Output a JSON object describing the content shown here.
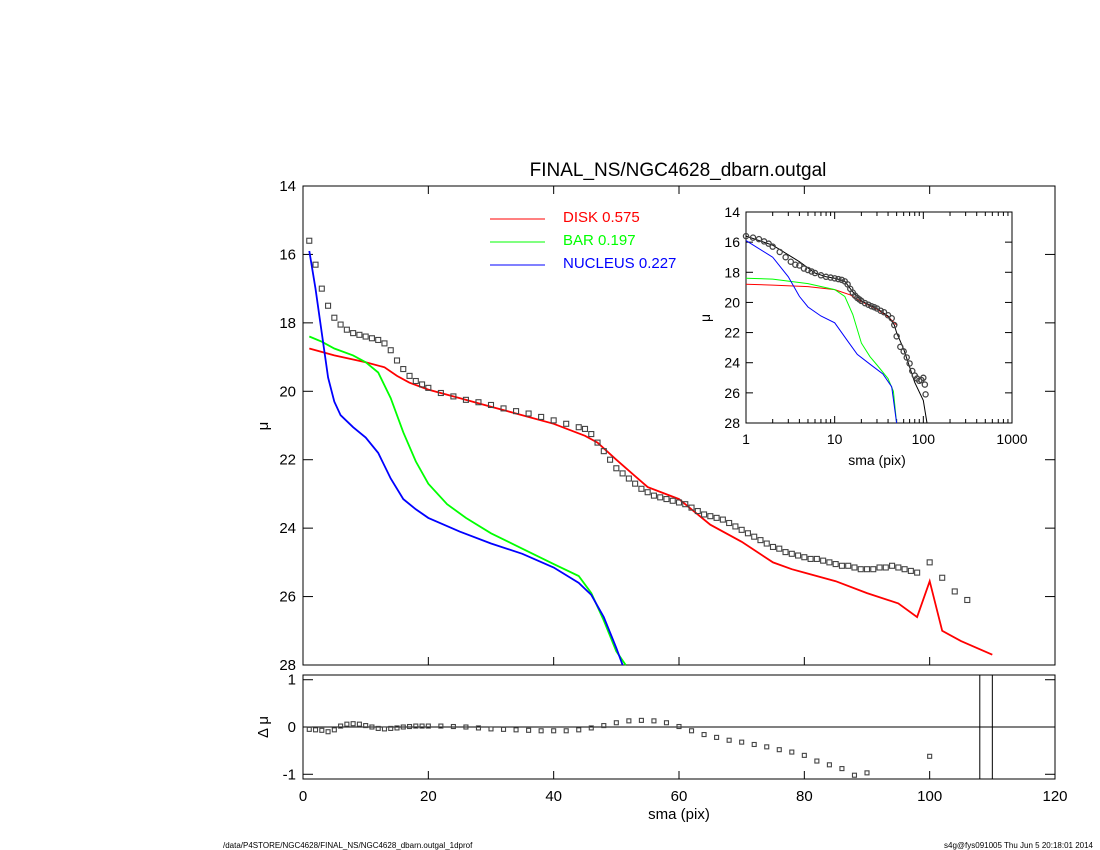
{
  "chart_data": [
    {
      "type": "scatter",
      "title": "FINAL_NS/NGC4628_dbarn.outgal",
      "xlabel": "",
      "ylabel": "μ",
      "xlim": [
        0,
        120
      ],
      "ylim": [
        28,
        14
      ],
      "x_ticks": [
        "0",
        "20",
        "40",
        "60",
        "80",
        "100",
        "120"
      ],
      "y_ticks": [
        "14",
        "16",
        "18",
        "20",
        "22",
        "24",
        "26",
        "28"
      ],
      "legend": [
        {
          "name": "DISK",
          "value": "0.575",
          "color": "#ff0000"
        },
        {
          "name": "BAR",
          "value": "0.197",
          "color": "#00ff00"
        },
        {
          "name": "NUCLEUS",
          "value": "0.227",
          "color": "#0000ff"
        }
      ],
      "series": [
        {
          "name": "DISK",
          "color": "#ff0000",
          "x": [
            1,
            5,
            10,
            13,
            15,
            17,
            20,
            25,
            30,
            35,
            40,
            45,
            47,
            50,
            55,
            60,
            65,
            70,
            75,
            78,
            80,
            85,
            90,
            95,
            98,
            100,
            102,
            105,
            110
          ],
          "y": [
            18.75,
            18.95,
            19.15,
            19.3,
            19.55,
            19.75,
            19.95,
            20.2,
            20.45,
            20.7,
            20.95,
            21.3,
            21.5,
            22.0,
            22.8,
            23.15,
            23.9,
            24.4,
            25.0,
            25.2,
            25.3,
            25.55,
            25.9,
            26.2,
            26.6,
            25.55,
            27.0,
            27.3,
            27.7
          ]
        },
        {
          "name": "BAR",
          "color": "#00ff00",
          "x": [
            1,
            3,
            5,
            8,
            10,
            12,
            14,
            16,
            18,
            20,
            23,
            26,
            30,
            35,
            40,
            44,
            46,
            48,
            50,
            51.5
          ],
          "y": [
            18.4,
            18.55,
            18.75,
            18.95,
            19.15,
            19.45,
            20.2,
            21.2,
            22.05,
            22.7,
            23.3,
            23.7,
            24.15,
            24.6,
            25.05,
            25.4,
            25.9,
            26.7,
            27.6,
            28.0
          ]
        },
        {
          "name": "NUCLEUS",
          "color": "#0000ff",
          "x": [
            1,
            2,
            3,
            4,
            5,
            6,
            8,
            10,
            12,
            14,
            16,
            18,
            20,
            25,
            30,
            35,
            40,
            44,
            46,
            48,
            50,
            51
          ],
          "y": [
            15.9,
            17.0,
            18.3,
            19.6,
            20.3,
            20.7,
            21.05,
            21.35,
            21.8,
            22.55,
            23.15,
            23.45,
            23.7,
            24.1,
            24.45,
            24.75,
            25.15,
            25.6,
            25.95,
            26.6,
            27.5,
            28.0
          ]
        },
        {
          "name": "data",
          "marker": "square",
          "color": "#444444",
          "x": [
            1,
            2,
            3,
            4,
            5,
            6,
            7,
            8,
            9,
            10,
            11,
            12,
            13,
            14,
            15,
            16,
            17,
            18,
            19,
            20,
            22,
            24,
            26,
            28,
            30,
            32,
            34,
            36,
            38,
            40,
            42,
            44,
            45,
            46,
            47,
            48,
            49,
            50,
            51,
            52,
            53,
            54,
            55,
            56,
            57,
            58,
            59,
            60,
            61,
            62,
            63,
            64,
            65,
            66,
            67,
            68,
            69,
            70,
            71,
            72,
            73,
            74,
            75,
            76,
            77,
            78,
            79,
            80,
            81,
            82,
            83,
            84,
            85,
            86,
            87,
            88,
            89,
            90,
            91,
            92,
            93,
            94,
            95,
            96,
            97,
            98,
            100,
            102,
            104,
            106
          ],
          "y": [
            15.6,
            16.3,
            17.0,
            17.5,
            17.85,
            18.05,
            18.2,
            18.3,
            18.35,
            18.4,
            18.45,
            18.5,
            18.6,
            18.8,
            19.1,
            19.35,
            19.55,
            19.7,
            19.8,
            19.9,
            20.05,
            20.15,
            20.25,
            20.32,
            20.4,
            20.5,
            20.58,
            20.65,
            20.75,
            20.85,
            20.95,
            21.05,
            21.1,
            21.25,
            21.5,
            21.75,
            22.0,
            22.25,
            22.4,
            22.55,
            22.7,
            22.85,
            22.95,
            23.05,
            23.1,
            23.15,
            23.2,
            23.25,
            23.3,
            23.4,
            23.5,
            23.6,
            23.65,
            23.7,
            23.75,
            23.85,
            23.95,
            24.05,
            24.15,
            24.25,
            24.35,
            24.45,
            24.55,
            24.6,
            24.7,
            24.75,
            24.8,
            24.85,
            24.9,
            24.9,
            24.95,
            25.0,
            25.05,
            25.1,
            25.1,
            25.15,
            25.2,
            25.2,
            25.2,
            25.15,
            25.15,
            25.1,
            25.15,
            25.2,
            25.25,
            25.3,
            25.0,
            25.45,
            25.85,
            26.1
          ]
        }
      ]
    },
    {
      "type": "scatter",
      "title": "",
      "xlabel": "sma (pix)",
      "ylabel": "Δ μ",
      "xlim": [
        0,
        120
      ],
      "ylim": [
        -1.1,
        1.1
      ],
      "x_ticks": [
        "0",
        "20",
        "40",
        "60",
        "80",
        "100",
        "120"
      ],
      "y_ticks": [
        "-1",
        "0",
        "1"
      ],
      "vlines": [
        108,
        110
      ],
      "series": [
        {
          "name": "residual",
          "marker": "square",
          "color": "#444444",
          "x": [
            1,
            2,
            3,
            4,
            5,
            6,
            7,
            8,
            9,
            10,
            11,
            12,
            13,
            14,
            15,
            16,
            17,
            18,
            19,
            20,
            22,
            24,
            26,
            28,
            30,
            32,
            34,
            36,
            38,
            40,
            42,
            44,
            46,
            48,
            50,
            52,
            54,
            56,
            58,
            60,
            62,
            64,
            66,
            68,
            70,
            72,
            74,
            76,
            78,
            80,
            82,
            84,
            86,
            88,
            90,
            100
          ],
          "y": [
            -0.05,
            -0.06,
            -0.07,
            -0.1,
            -0.06,
            0.02,
            0.06,
            0.07,
            0.06,
            0.03,
            0.0,
            -0.03,
            -0.04,
            -0.03,
            -0.02,
            0.0,
            0.01,
            0.02,
            0.02,
            0.02,
            0.02,
            0.01,
            0.0,
            -0.02,
            -0.04,
            -0.05,
            -0.06,
            -0.07,
            -0.08,
            -0.08,
            -0.08,
            -0.06,
            -0.02,
            0.03,
            0.09,
            0.13,
            0.14,
            0.13,
            0.09,
            0.01,
            -0.08,
            -0.16,
            -0.22,
            -0.28,
            -0.32,
            -0.37,
            -0.42,
            -0.48,
            -0.53,
            -0.6,
            -0.72,
            -0.8,
            -0.88,
            -1.02,
            -0.97,
            -0.62
          ]
        }
      ]
    },
    {
      "type": "line",
      "title": "",
      "xlabel": "sma (pix)",
      "ylabel": "μ",
      "xscale": "log",
      "xlim": [
        1,
        1000
      ],
      "ylim": [
        28,
        14
      ],
      "x_ticks": [
        "1",
        "10",
        "100",
        "1000"
      ],
      "y_ticks": [
        "14",
        "16",
        "18",
        "20",
        "22",
        "24",
        "26",
        "28"
      ],
      "series": [
        {
          "name": "DISK",
          "color": "#ff0000",
          "x": [
            1,
            2,
            5,
            10,
            15,
            20,
            30,
            40,
            50
          ],
          "y": [
            18.8,
            18.85,
            18.95,
            19.15,
            19.5,
            19.95,
            20.45,
            20.95,
            21.5
          ]
        },
        {
          "name": "BAR",
          "color": "#00ff00",
          "x": [
            1,
            2,
            5,
            10,
            13,
            16,
            20,
            25,
            30,
            40,
            46,
            50
          ],
          "y": [
            18.4,
            18.45,
            18.75,
            19.15,
            19.6,
            20.8,
            22.7,
            23.6,
            24.15,
            25.05,
            25.9,
            28.0
          ]
        },
        {
          "name": "NUCLEUS",
          "color": "#0000ff",
          "x": [
            1,
            2,
            3,
            4,
            5,
            7,
            10,
            14,
            18,
            25,
            35,
            44,
            50
          ],
          "y": [
            15.9,
            17.0,
            18.3,
            19.6,
            20.3,
            20.9,
            21.35,
            22.55,
            23.45,
            24.1,
            24.75,
            25.6,
            28.0
          ]
        },
        {
          "name": "model",
          "color": "#000000",
          "x": [
            1,
            2,
            4,
            6,
            8,
            10,
            13,
            16,
            20,
            30,
            40,
            47,
            50,
            60,
            80,
            100,
            110
          ],
          "y": [
            15.6,
            16.2,
            17.3,
            18.05,
            18.3,
            18.4,
            18.6,
            19.3,
            19.9,
            20.4,
            20.9,
            21.5,
            22.0,
            23.1,
            25.3,
            26.5,
            28.0
          ]
        },
        {
          "name": "data",
          "marker": "circle",
          "color": "#444444",
          "x": [
            1,
            1.2,
            1.4,
            1.6,
            1.8,
            2,
            2.4,
            2.8,
            3.2,
            3.6,
            4,
            4.5,
            5,
            5.5,
            6,
            7,
            8,
            9,
            10,
            11,
            12,
            13,
            14,
            15,
            16,
            17,
            18,
            19,
            20,
            22,
            24,
            26,
            28,
            30,
            33,
            36,
            40,
            44,
            47,
            50,
            55,
            60,
            65,
            70,
            75,
            80,
            85,
            90,
            95,
            100,
            104,
            106
          ],
          "y": [
            15.6,
            15.7,
            15.8,
            15.95,
            16.1,
            16.3,
            16.65,
            17.0,
            17.3,
            17.5,
            17.55,
            17.75,
            17.85,
            17.95,
            18.05,
            18.2,
            18.3,
            18.35,
            18.4,
            18.45,
            18.5,
            18.6,
            18.8,
            19.1,
            19.35,
            19.55,
            19.7,
            19.8,
            19.9,
            20.05,
            20.15,
            20.25,
            20.32,
            20.4,
            20.55,
            20.65,
            20.85,
            21.05,
            21.5,
            22.25,
            22.95,
            23.25,
            23.65,
            24.05,
            24.55,
            24.85,
            25.05,
            25.2,
            25.15,
            25.0,
            25.45,
            26.1
          ]
        }
      ]
    }
  ],
  "footer": {
    "left": "/data/P4STORE/NGC4628/FINAL_NS/NGC4628_dbarn.outgal_1dprof",
    "right": "s4g@fys091005  Thu Jun  5 20:18:01 2014"
  }
}
